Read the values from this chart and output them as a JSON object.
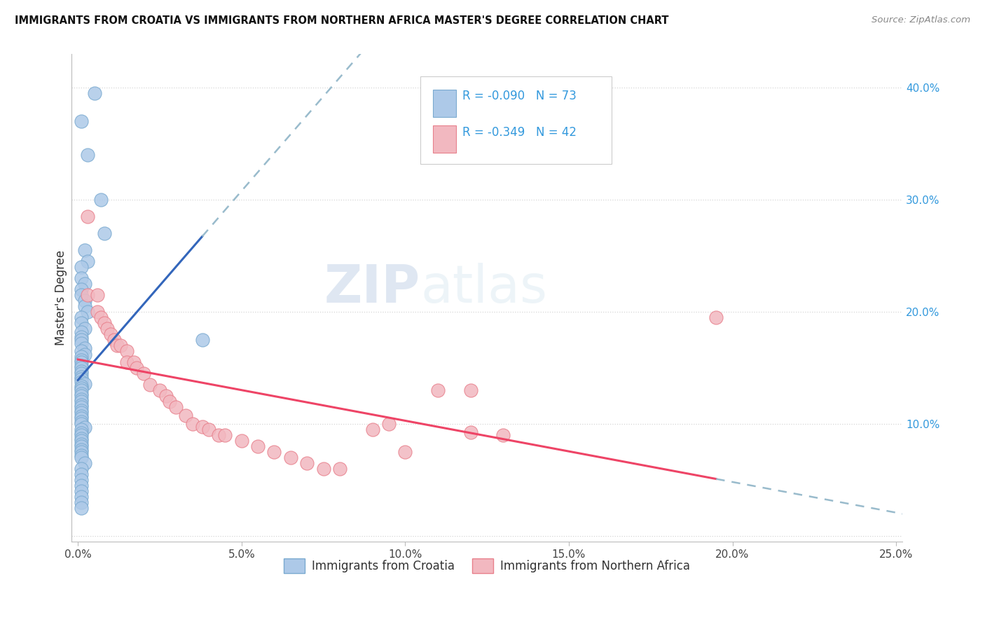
{
  "title": "IMMIGRANTS FROM CROATIA VS IMMIGRANTS FROM NORTHERN AFRICA MASTER'S DEGREE CORRELATION CHART",
  "source": "Source: ZipAtlas.com",
  "ylabel": "Master's Degree",
  "x_ticks": [
    0.0,
    0.05,
    0.1,
    0.15,
    0.2,
    0.25
  ],
  "x_tick_labels": [
    "0.0%",
    "5.0%",
    "10.0%",
    "15.0%",
    "20.0%",
    "25.0%"
  ],
  "y_ticks": [
    0.0,
    0.1,
    0.2,
    0.3,
    0.4
  ],
  "y_tick_labels": [
    "",
    "10.0%",
    "20.0%",
    "30.0%",
    "40.0%"
  ],
  "xlim": [
    -0.002,
    0.252
  ],
  "ylim": [
    -0.005,
    0.43
  ],
  "croatia_color": "#adc9e8",
  "croatia_edge": "#7aaad0",
  "northern_africa_color": "#f2b8c0",
  "northern_africa_edge": "#e8808c",
  "trend_croatia_color": "#3366bb",
  "trend_na_color": "#ee4466",
  "trend_dashed_color": "#99bbcc",
  "legend_R1": "R = -0.090",
  "legend_N1": "N = 73",
  "legend_R2": "R = -0.349",
  "legend_N2": "N = 42",
  "legend_label1": "Immigrants from Croatia",
  "legend_label2": "Immigrants from Northern Africa",
  "watermark_zip": "ZIP",
  "watermark_atlas": "atlas",
  "croatia_x": [
    0.005,
    0.001,
    0.003,
    0.007,
    0.008,
    0.002,
    0.003,
    0.001,
    0.001,
    0.002,
    0.001,
    0.001,
    0.002,
    0.002,
    0.003,
    0.001,
    0.001,
    0.002,
    0.001,
    0.001,
    0.001,
    0.001,
    0.002,
    0.001,
    0.002,
    0.001,
    0.001,
    0.001,
    0.001,
    0.001,
    0.001,
    0.001,
    0.001,
    0.001,
    0.001,
    0.002,
    0.001,
    0.001,
    0.001,
    0.001,
    0.001,
    0.001,
    0.001,
    0.001,
    0.001,
    0.001,
    0.001,
    0.001,
    0.001,
    0.001,
    0.001,
    0.002,
    0.001,
    0.001,
    0.001,
    0.001,
    0.001,
    0.001,
    0.001,
    0.001,
    0.001,
    0.001,
    0.001,
    0.002,
    0.001,
    0.001,
    0.001,
    0.001,
    0.001,
    0.001,
    0.001,
    0.001,
    0.038
  ],
  "croatia_y": [
    0.395,
    0.37,
    0.34,
    0.3,
    0.27,
    0.255,
    0.245,
    0.24,
    0.23,
    0.225,
    0.22,
    0.215,
    0.21,
    0.205,
    0.2,
    0.195,
    0.19,
    0.185,
    0.182,
    0.178,
    0.175,
    0.172,
    0.168,
    0.165,
    0.162,
    0.16,
    0.157,
    0.155,
    0.152,
    0.15,
    0.147,
    0.145,
    0.142,
    0.14,
    0.138,
    0.136,
    0.134,
    0.132,
    0.13,
    0.127,
    0.125,
    0.122,
    0.12,
    0.117,
    0.115,
    0.112,
    0.11,
    0.107,
    0.105,
    0.102,
    0.1,
    0.097,
    0.095,
    0.092,
    0.09,
    0.087,
    0.085,
    0.082,
    0.08,
    0.077,
    0.075,
    0.072,
    0.07,
    0.065,
    0.06,
    0.055,
    0.05,
    0.045,
    0.04,
    0.035,
    0.03,
    0.025,
    0.175
  ],
  "na_x": [
    0.003,
    0.003,
    0.006,
    0.006,
    0.007,
    0.008,
    0.009,
    0.01,
    0.011,
    0.012,
    0.013,
    0.015,
    0.015,
    0.017,
    0.018,
    0.02,
    0.022,
    0.025,
    0.027,
    0.028,
    0.03,
    0.033,
    0.035,
    0.038,
    0.04,
    0.043,
    0.045,
    0.05,
    0.055,
    0.06,
    0.065,
    0.07,
    0.075,
    0.08,
    0.09,
    0.095,
    0.1,
    0.11,
    0.12,
    0.13,
    0.195,
    0.12
  ],
  "na_y": [
    0.285,
    0.215,
    0.215,
    0.2,
    0.195,
    0.19,
    0.185,
    0.18,
    0.175,
    0.17,
    0.17,
    0.165,
    0.155,
    0.155,
    0.15,
    0.145,
    0.135,
    0.13,
    0.125,
    0.12,
    0.115,
    0.108,
    0.1,
    0.098,
    0.095,
    0.09,
    0.09,
    0.085,
    0.08,
    0.075,
    0.07,
    0.065,
    0.06,
    0.06,
    0.095,
    0.1,
    0.075,
    0.13,
    0.13,
    0.09,
    0.195,
    0.093
  ]
}
